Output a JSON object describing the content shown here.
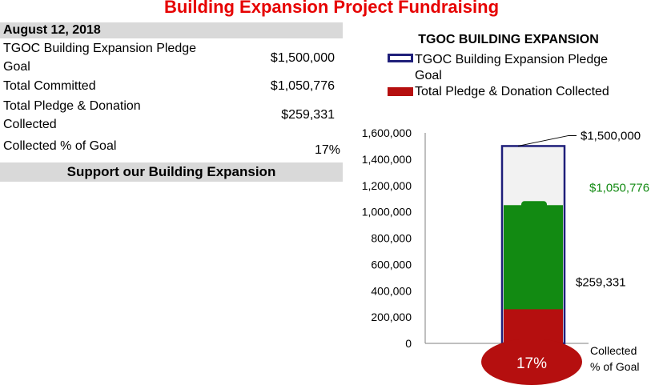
{
  "page": {
    "title": "Building Expansion Project Fundraising"
  },
  "summary": {
    "date": "August 12, 2018",
    "rows": [
      {
        "label_line1": "TGOC Building Expansion  Pledge",
        "label_line2": "Goal",
        "value": "$1,500,000"
      },
      {
        "label_line1": "Total Committed",
        "label_line2": "",
        "value": "$1,050,776"
      },
      {
        "label_line1": "Total Pledge & Donation",
        "label_line2": "Collected",
        "value": "$259,331"
      },
      {
        "label_line1": "Collected % of Goal",
        "label_line2": "",
        "value": "17%"
      }
    ],
    "support_text": "Support our Building Expansion"
  },
  "chart_data": {
    "type": "bar",
    "title": "TGOC BUILDING EXPANSION",
    "legend": [
      {
        "line1": "TGOC Building Expansion  Pledge",
        "line2": "Goal",
        "style": "outline",
        "color": "#1f1f7a"
      },
      {
        "line1": "Total Pledge & Donation Collected",
        "line2": "",
        "style": "filled",
        "color": "#b50f0f"
      }
    ],
    "ylim": [
      0,
      1600000
    ],
    "yticks": [
      "0",
      "200,000",
      "400,000",
      "600,000",
      "800,000",
      "1,000,000",
      "1,200,000",
      "1,400,000",
      "1,600,000"
    ],
    "ytick_values": [
      0,
      200000,
      400000,
      600000,
      800000,
      1000000,
      1200000,
      1400000,
      1600000
    ],
    "series": [
      {
        "name": "TGOC Building Expansion Pledge Goal",
        "value": 1500000,
        "color": "#1f1f7a",
        "label": "$1,500,000"
      },
      {
        "name": "Total Committed",
        "value": 1050776,
        "color": "#128a12",
        "label": "$1,050,776"
      },
      {
        "name": "Total Pledge & Donation Collected",
        "value": 259331,
        "color": "#b50f0f",
        "label": "$259,331"
      }
    ],
    "bulb_label": "17%",
    "bulb_color": "#b50f0f",
    "bulb_caption_line1": "Collected",
    "bulb_caption_line2": "% of Goal",
    "grid": false,
    "legend_position": "top"
  }
}
